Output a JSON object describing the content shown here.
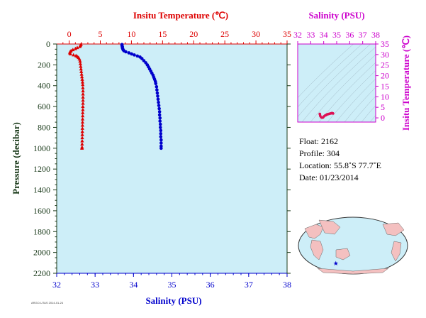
{
  "colors": {
    "temperature": "#dd0000",
    "salinity": "#0000cc",
    "panel_fill": "#cdeef8",
    "axis_dark": "#1a3a1a",
    "ts_magenta": "#cc00cc",
    "ts_points": "#dd1155",
    "land": "#f4c0c0"
  },
  "main_chart": {
    "type": "scatter",
    "top_axis_title": "Insitu Temperature (℃)",
    "bottom_axis_title": "Salinity (PSU)",
    "left_axis_title": "Pressure (decibar)",
    "temperature_ticks": [
      "0",
      "5",
      "10",
      "15",
      "20",
      "25",
      "30",
      "35"
    ],
    "salinity_ticks": [
      "32",
      "33",
      "34",
      "35",
      "36",
      "37",
      "38"
    ],
    "pressure_ticks": [
      "0",
      "200",
      "400",
      "600",
      "800",
      "1000",
      "1200",
      "1400",
      "1600",
      "1800",
      "2000",
      "2200"
    ],
    "xlim_temperature": [
      -2,
      35
    ],
    "xlim_salinity": [
      32,
      38
    ],
    "ylim_pressure": [
      0,
      2200
    ],
    "pressure_reversed": true,
    "grid": false,
    "watermark_text": "ARGO-UTAS 2014-01-24"
  },
  "chart_data": [
    {
      "type": "scatter",
      "title": "",
      "xlabel": "Insitu Temperature (℃)",
      "ylabel": "Pressure (decibar)",
      "xlim": [
        -2,
        35
      ],
      "ylim": [
        2200,
        0
      ],
      "series": [
        {
          "name": "Temperature",
          "marker": "triangle",
          "points": [
            [
              1.9,
              5
            ],
            [
              1.8,
              15
            ],
            [
              1.7,
              25
            ],
            [
              1.3,
              35
            ],
            [
              1.0,
              45
            ],
            [
              0.6,
              55
            ],
            [
              0.3,
              65
            ],
            [
              0.15,
              75
            ],
            [
              0.1,
              85
            ],
            [
              0.2,
              95
            ],
            [
              0.7,
              105
            ],
            [
              1.1,
              112
            ],
            [
              1.3,
              120
            ],
            [
              1.5,
              130
            ],
            [
              1.65,
              145
            ],
            [
              1.75,
              165
            ],
            [
              1.8,
              190
            ],
            [
              1.85,
              215
            ],
            [
              1.9,
              240
            ],
            [
              1.95,
              265
            ],
            [
              2.0,
              290
            ],
            [
              2.05,
              315
            ],
            [
              2.1,
              340
            ],
            [
              2.15,
              365
            ],
            [
              2.18,
              390
            ],
            [
              2.2,
              420
            ],
            [
              2.22,
              450
            ],
            [
              2.22,
              480
            ],
            [
              2.22,
              510
            ],
            [
              2.22,
              540
            ],
            [
              2.22,
              570
            ],
            [
              2.2,
              600
            ],
            [
              2.2,
              630
            ],
            [
              2.18,
              660
            ],
            [
              2.17,
              690
            ],
            [
              2.16,
              720
            ],
            [
              2.15,
              750
            ],
            [
              2.14,
              780
            ],
            [
              2.13,
              810
            ],
            [
              2.12,
              840
            ],
            [
              2.11,
              870
            ],
            [
              2.1,
              900
            ],
            [
              2.09,
              930
            ],
            [
              2.08,
              960
            ],
            [
              2.07,
              990
            ],
            [
              2.06,
              1000
            ]
          ]
        }
      ]
    },
    {
      "type": "scatter",
      "title": "",
      "xlabel": "Salinity (PSU)",
      "ylabel": "Pressure (decibar)",
      "xlim": [
        32,
        38
      ],
      "ylim": [
        2200,
        0
      ],
      "series": [
        {
          "name": "Salinity",
          "marker": "circle",
          "points": [
            [
              33.7,
              5
            ],
            [
              33.7,
              15
            ],
            [
              33.71,
              25
            ],
            [
              33.71,
              35
            ],
            [
              33.72,
              45
            ],
            [
              33.73,
              55
            ],
            [
              33.75,
              65
            ],
            [
              33.8,
              75
            ],
            [
              33.88,
              85
            ],
            [
              33.95,
              95
            ],
            [
              34.02,
              105
            ],
            [
              34.1,
              115
            ],
            [
              34.17,
              125
            ],
            [
              34.22,
              140
            ],
            [
              34.27,
              160
            ],
            [
              34.32,
              180
            ],
            [
              34.36,
              200
            ],
            [
              34.39,
              220
            ],
            [
              34.42,
              240
            ],
            [
              34.45,
              260
            ],
            [
              34.48,
              280
            ],
            [
              34.51,
              300
            ],
            [
              34.53,
              320
            ],
            [
              34.55,
              340
            ],
            [
              34.57,
              360
            ],
            [
              34.58,
              380
            ],
            [
              34.6,
              410
            ],
            [
              34.61,
              440
            ],
            [
              34.62,
              470
            ],
            [
              34.63,
              500
            ],
            [
              34.64,
              530
            ],
            [
              34.65,
              560
            ],
            [
              34.66,
              590
            ],
            [
              34.67,
              620
            ],
            [
              34.68,
              650
            ],
            [
              34.68,
              680
            ],
            [
              34.69,
              710
            ],
            [
              34.69,
              740
            ],
            [
              34.7,
              770
            ],
            [
              34.7,
              800
            ],
            [
              34.71,
              830
            ],
            [
              34.71,
              860
            ],
            [
              34.71,
              890
            ],
            [
              34.72,
              920
            ],
            [
              34.72,
              950
            ],
            [
              34.72,
              980
            ],
            [
              34.72,
              1000
            ]
          ]
        }
      ]
    },
    {
      "type": "scatter",
      "title": "",
      "xlabel": "Salinity (PSU)",
      "ylabel": "Insitu Temperature (℃)",
      "xlim": [
        32,
        38
      ],
      "ylim": [
        -2,
        35
      ],
      "series": [
        {
          "name": "T-S",
          "points": [
            [
              33.7,
              1.9
            ],
            [
              33.71,
              1.7
            ],
            [
              33.73,
              1.0
            ],
            [
              33.8,
              0.3
            ],
            [
              33.88,
              0.1
            ],
            [
              33.95,
              0.2
            ],
            [
              34.02,
              0.7
            ],
            [
              34.1,
              1.1
            ],
            [
              34.17,
              1.3
            ],
            [
              34.22,
              1.5
            ],
            [
              34.27,
              1.65
            ],
            [
              34.32,
              1.75
            ],
            [
              34.39,
              1.85
            ],
            [
              34.45,
              1.95
            ],
            [
              34.51,
              2.05
            ],
            [
              34.57,
              2.15
            ],
            [
              34.61,
              2.22
            ],
            [
              34.65,
              2.22
            ],
            [
              34.68,
              2.18
            ],
            [
              34.7,
              2.14
            ],
            [
              34.72,
              2.08
            ]
          ]
        }
      ]
    }
  ],
  "ts_chart": {
    "top_axis_title": "Salinity (PSU)",
    "right_axis_title": "Insitu Temperature (℃)",
    "salinity_ticks": [
      "32",
      "33",
      "34",
      "35",
      "36",
      "37",
      "38"
    ],
    "temperature_ticks": [
      "0",
      "5",
      "10",
      "15",
      "20",
      "25",
      "30",
      "35"
    ]
  },
  "float_info": {
    "float_label": "Float:",
    "float_value": "2162",
    "profile_label": "Profile:",
    "profile_value": "304",
    "location_label": "Location:",
    "location_value": "55.8˚S  77.7˚E",
    "date_label": "Date:",
    "date_value": "01/23/2014"
  },
  "map": {
    "marker": "★",
    "marker_lat": -55.8,
    "marker_lon": 77.7
  }
}
